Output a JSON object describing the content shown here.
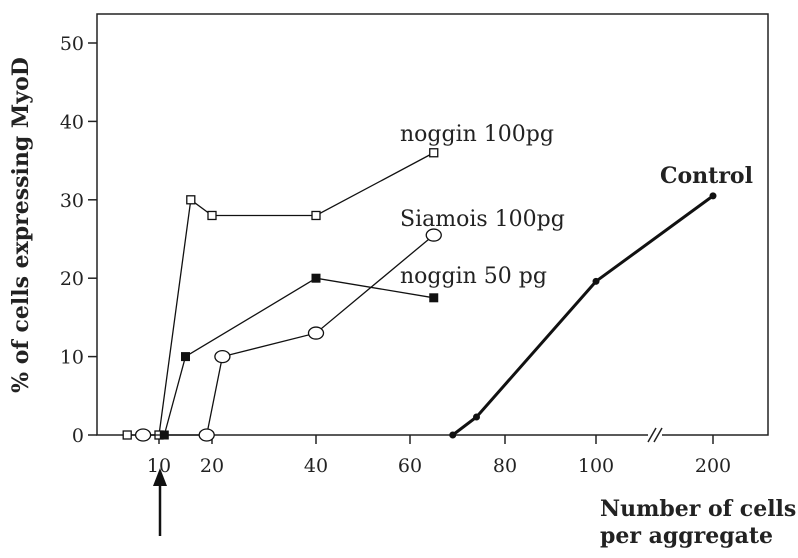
{
  "chart_data": {
    "type": "line",
    "title": "",
    "xlabel_lines": [
      "Number of cells",
      "per aggregate"
    ],
    "ylabel": "% of cells expressing MyoD",
    "ylim": [
      0,
      50
    ],
    "yticks": [
      0,
      10,
      20,
      30,
      40,
      50
    ],
    "xticks": [
      10,
      20,
      40,
      60,
      80,
      100,
      200
    ],
    "x_axis_break": "between 100 and 200",
    "arrow_marker_at_x": 10,
    "series": [
      {
        "name": "noggin 100pg",
        "marker": "open-square",
        "line": "thin",
        "x": [
          4,
          10,
          16,
          20,
          40,
          65
        ],
        "y": [
          0,
          0,
          30,
          28,
          28,
          36
        ]
      },
      {
        "name": "Siamois 100pg",
        "marker": "open-circle",
        "line": "thin",
        "x": [
          7,
          19,
          22,
          40,
          65
        ],
        "y": [
          0,
          0,
          10,
          13,
          25.5
        ]
      },
      {
        "name": "noggin 50 pg",
        "marker": "filled-square",
        "line": "thin",
        "x": [
          11,
          15,
          40,
          65
        ],
        "y": [
          0,
          10,
          20,
          17.5
        ]
      },
      {
        "name": "Control",
        "marker": "filled-circle",
        "line": "thick",
        "x": [
          69,
          74,
          100,
          200
        ],
        "y": [
          0,
          2.3,
          19.6,
          30.5
        ]
      }
    ]
  }
}
